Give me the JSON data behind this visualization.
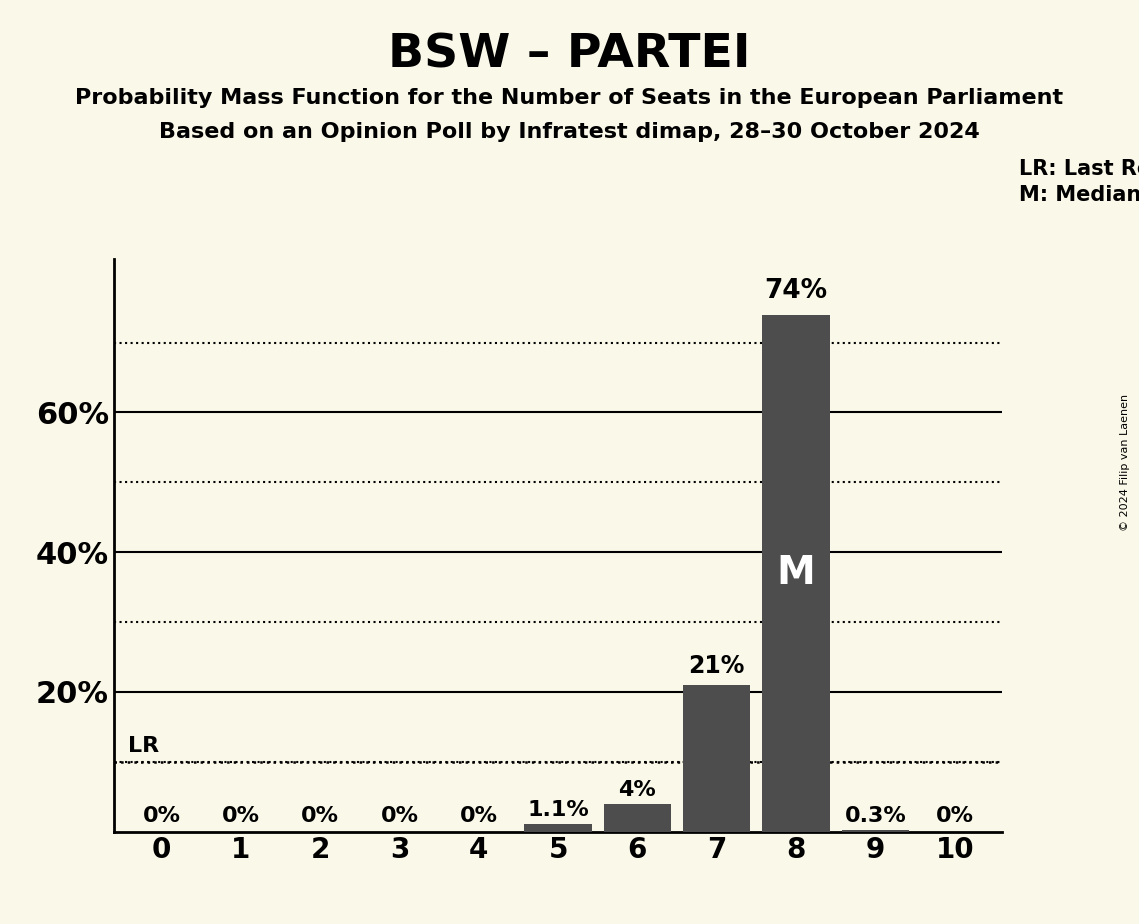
{
  "title": "BSW – PARTEI",
  "subtitle1": "Probability Mass Function for the Number of Seats in the European Parliament",
  "subtitle2": "Based on an Opinion Poll by Infratest dimap, 28–30 October 2024",
  "copyright": "© 2024 Filip van Laenen",
  "x_labels": [
    0,
    1,
    2,
    3,
    4,
    5,
    6,
    7,
    8,
    9,
    10
  ],
  "values": [
    0.0,
    0.0,
    0.0,
    0.0,
    0.0,
    1.1,
    4.0,
    21.0,
    74.0,
    0.3,
    0.0
  ],
  "bar_labels": [
    "0%",
    "0%",
    "0%",
    "0%",
    "0%",
    "1.1%",
    "4%",
    "21%",
    "74%",
    "0.3%",
    "0%"
  ],
  "bar_color": "#4d4d4d",
  "background_color": "#faf8e8",
  "lr_value": 10.0,
  "median_seat": 8,
  "ylim": [
    0,
    82
  ],
  "yticks": [
    20,
    40,
    60
  ],
  "ytick_labels": [
    "20%",
    "40%",
    "60%"
  ],
  "dotted_lines": [
    10,
    30,
    50,
    70
  ],
  "title_fontsize": 34,
  "subtitle_fontsize": 16,
  "bar_label_fontsize": 16,
  "axis_tick_fontsize": 20,
  "ylabel_fontsize": 22,
  "legend_fontsize": 15,
  "copyright_fontsize": 8
}
